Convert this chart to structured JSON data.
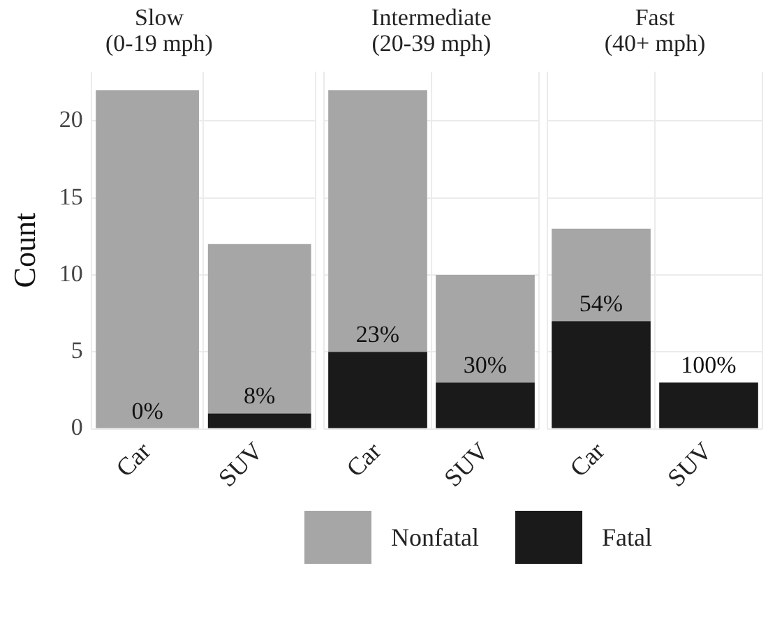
{
  "chart_data": [
    {
      "type": "bar",
      "title": "Slow\n(0-19 mph)",
      "ylabel": "Count",
      "categories": [
        "Car",
        "SUV"
      ],
      "stacked": true,
      "ylim": [
        0,
        23.2
      ],
      "yticks": [
        0,
        5,
        10,
        15,
        20
      ],
      "grid": true,
      "legend": "bottom",
      "series": [
        {
          "name": "Fatal",
          "color": "#1a1a1a",
          "values": [
            0,
            1
          ]
        },
        {
          "name": "Nonfatal",
          "color": "#a6a6a6",
          "values": [
            22,
            11
          ]
        }
      ],
      "annotations": [
        {
          "text": "0%",
          "x": "Car",
          "y": 0
        },
        {
          "text": "8%",
          "x": "SUV",
          "y": 1
        }
      ]
    },
    {
      "type": "bar",
      "title": "Intermediate\n(20-39 mph)",
      "categories": [
        "Car",
        "SUV"
      ],
      "stacked": true,
      "ylim": [
        0,
        23.2
      ],
      "yticks": [
        0,
        5,
        10,
        15,
        20
      ],
      "grid": true,
      "tick_labels": "x",
      "series": [
        {
          "color": "#1a1a1a",
          "values": [
            5,
            3
          ]
        },
        {
          "color": "#a6a6a6",
          "values": [
            17,
            7
          ]
        }
      ],
      "annotations": [
        {
          "text": "23%",
          "x": "Car",
          "y": 5
        },
        {
          "text": "30%",
          "x": "SUV",
          "y": 3
        }
      ]
    },
    {
      "type": "bar",
      "title": "Fast\n(40+ mph)",
      "categories": [
        "Car",
        "SUV"
      ],
      "stacked": true,
      "ylim": [
        0,
        23.2
      ],
      "yticks": [
        0,
        5,
        10,
        15,
        20
      ],
      "grid": true,
      "tick_labels": "x",
      "series": [
        {
          "color": "#1a1a1a",
          "values": [
            7,
            3
          ]
        },
        {
          "color": "#a6a6a6",
          "values": [
            6,
            0
          ]
        }
      ],
      "annotations": [
        {
          "text": "54%",
          "x": "Car",
          "y": 7
        },
        {
          "text": "100%",
          "x": "SUV",
          "y": 3
        }
      ]
    }
  ]
}
